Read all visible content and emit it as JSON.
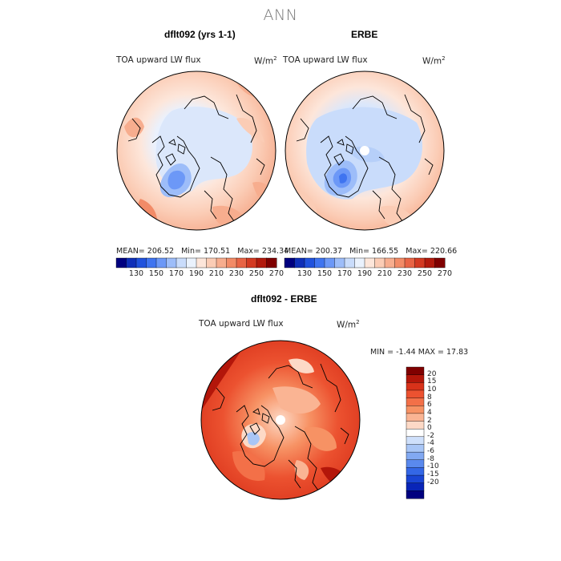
{
  "title": "ANN",
  "panels": [
    {
      "title": "dflt092 (yrs 1-1)",
      "field_label": "TOA upward LW flux",
      "units_base": "W/m",
      "units_exp": "2",
      "stats": {
        "mean_label": "MEAN=",
        "mean": "206.52",
        "min_label": "Min=",
        "min": "170.51",
        "max_label": "Max=",
        "max": "234.34"
      }
    },
    {
      "title": "ERBE",
      "field_label": "TOA upward LW flux",
      "units_base": "W/m",
      "units_exp": "2",
      "stats": {
        "mean_label": "MEAN=",
        "mean": "200.37",
        "min_label": "Min=",
        "min": "166.55",
        "max_label": "Max=",
        "max": "220.66"
      }
    }
  ],
  "top_colorbar": {
    "ticks": [
      "130",
      "150",
      "170",
      "190",
      "210",
      "230",
      "250",
      "270"
    ],
    "colors": [
      "#00007f",
      "#0f2fb8",
      "#2052dd",
      "#3f74f0",
      "#6c98f7",
      "#9dbdf9",
      "#c9dcfb",
      "#eaf2fd",
      "#fde6da",
      "#fbccb5",
      "#f7ad8e",
      "#f28b67",
      "#e86445",
      "#d33a22",
      "#b21a0d",
      "#7f0000"
    ]
  },
  "diff_panel": {
    "title": "dflt092 - ERBE",
    "field_label": "TOA upward LW flux",
    "units_base": "W/m",
    "units_exp": "2",
    "min_label": "MIN =",
    "min": "-1.44",
    "max_label": "MAX =",
    "max": "17.83",
    "colorbar_ticks": [
      "20",
      "15",
      "10",
      "8",
      "6",
      "4",
      "2",
      "0",
      "-2",
      "-4",
      "-6",
      "-8",
      "-10",
      "-15",
      "-20"
    ],
    "colorbar_colors": [
      "#800000",
      "#b3160a",
      "#d8321a",
      "#ec5230",
      "#f37048",
      "#f79264",
      "#fab493",
      "#fdd9c6",
      "#ffffff",
      "#cfe0fb",
      "#a9c6f6",
      "#82a9f2",
      "#5a89ee",
      "#3467e6",
      "#1a45d4",
      "#0925b8",
      "#00007f"
    ]
  }
}
